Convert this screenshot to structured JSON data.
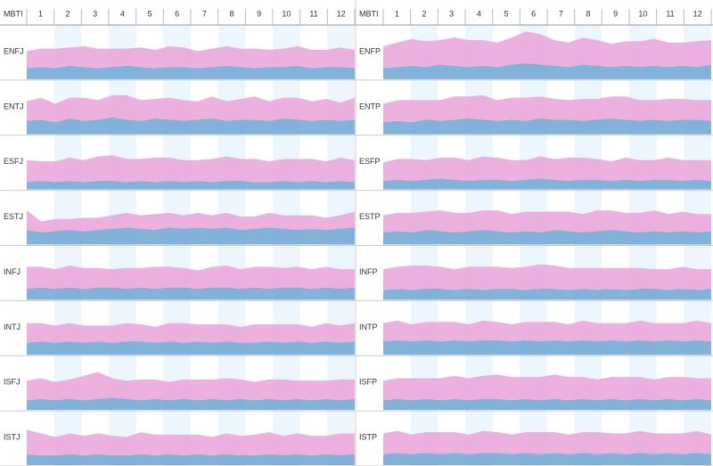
{
  "chart_data": {
    "type": "area",
    "header": "MBTI",
    "months": [
      "1",
      "2",
      "3",
      "4",
      "5",
      "6",
      "7",
      "8",
      "9",
      "10",
      "11",
      "12"
    ],
    "colors": [
      "#6fa6d3",
      "#eaa3d9"
    ],
    "stacked": true,
    "ylim": [
      0,
      40
    ],
    "panels": [
      {
        "name": "ENFJ",
        "series": [
          {
            "color": "#6fa6d3",
            "values": [
              9,
              10,
              9,
              11,
              10,
              9,
              10,
              11,
              10,
              9,
              10,
              10,
              9,
              10,
              11,
              10,
              9,
              10,
              10,
              11,
              9,
              10,
              10,
              9
            ]
          },
          {
            "color": "#eaa3d9",
            "values": [
              14,
              15,
              16,
              15,
              17,
              16,
              15,
              14,
              16,
              15,
              17,
              16,
              14,
              15,
              16,
              15,
              16,
              14,
              15,
              16,
              15,
              14,
              16,
              15
            ]
          }
        ]
      },
      {
        "name": "ENFP",
        "series": [
          {
            "color": "#6fa6d3",
            "values": [
              9,
              10,
              11,
              10,
              12,
              11,
              10,
              11,
              10,
              12,
              13,
              12,
              11,
              10,
              12,
              11,
              10,
              11,
              10,
              11,
              10,
              11,
              10,
              12
            ]
          },
          {
            "color": "#eaa3d9",
            "values": [
              18,
              20,
              22,
              21,
              20,
              23,
              22,
              21,
              20,
              22,
              26,
              25,
              21,
              20,
              22,
              21,
              19,
              20,
              21,
              22,
              20,
              19,
              21,
              20
            ]
          }
        ]
      },
      {
        "name": "ENTJ",
        "series": [
          {
            "color": "#6fa6d3",
            "values": [
              11,
              12,
              10,
              13,
              11,
              12,
              14,
              12,
              11,
              13,
              12,
              11,
              12,
              13,
              11,
              12,
              12,
              11,
              13,
              12,
              11,
              12,
              11,
              12
            ]
          },
          {
            "color": "#eaa3d9",
            "values": [
              16,
              18,
              15,
              17,
              19,
              16,
              18,
              20,
              17,
              16,
              18,
              17,
              15,
              18,
              16,
              17,
              19,
              16,
              17,
              18,
              16,
              17,
              15,
              18
            ]
          }
        ]
      },
      {
        "name": "ENTP",
        "series": [
          {
            "color": "#6fa6d3",
            "values": [
              10,
              11,
              10,
              12,
              11,
              12,
              13,
              12,
              11,
              12,
              11,
              13,
              12,
              12,
              11,
              12,
              13,
              12,
              11,
              12,
              11,
              12,
              12,
              11
            ]
          },
          {
            "color": "#eaa3d9",
            "values": [
              15,
              17,
              18,
              16,
              17,
              19,
              18,
              20,
              17,
              18,
              19,
              18,
              17,
              16,
              18,
              17,
              18,
              19,
              17,
              16,
              18,
              17,
              16,
              17
            ]
          }
        ]
      },
      {
        "name": "ESFJ",
        "series": [
          {
            "color": "#6fa6d3",
            "values": [
              6,
              7,
              6,
              7,
              6,
              7,
              7,
              6,
              7,
              6,
              7,
              6,
              7,
              6,
              7,
              7,
              6,
              6,
              7,
              6,
              7,
              6,
              7,
              6
            ]
          },
          {
            "color": "#eaa3d9",
            "values": [
              18,
              16,
              17,
              19,
              18,
              20,
              21,
              19,
              18,
              20,
              19,
              18,
              17,
              19,
              20,
              18,
              19,
              17,
              18,
              19,
              18,
              17,
              19,
              18
            ]
          }
        ]
      },
      {
        "name": "ESFP",
        "series": [
          {
            "color": "#6fa6d3",
            "values": [
              7,
              8,
              7,
              8,
              9,
              8,
              7,
              8,
              8,
              7,
              8,
              9,
              8,
              7,
              8,
              8,
              7,
              8,
              7,
              8,
              8,
              7,
              8,
              7
            ]
          },
          {
            "color": "#eaa3d9",
            "values": [
              15,
              17,
              18,
              16,
              17,
              18,
              17,
              19,
              18,
              17,
              16,
              18,
              17,
              19,
              18,
              17,
              16,
              18,
              17,
              16,
              18,
              17,
              16,
              17
            ]
          }
        ]
      },
      {
        "name": "ESTJ",
        "series": [
          {
            "color": "#6fa6d3",
            "values": [
              12,
              10,
              11,
              12,
              11,
              12,
              13,
              14,
              13,
              12,
              14,
              13,
              14,
              13,
              14,
              12,
              13,
              14,
              13,
              12,
              13,
              12,
              13,
              14
            ]
          },
          {
            "color": "#eaa3d9",
            "values": [
              16,
              9,
              10,
              9,
              11,
              10,
              11,
              12,
              11,
              13,
              12,
              11,
              12,
              11,
              12,
              11,
              10,
              12,
              11,
              12,
              11,
              10,
              11,
              13
            ]
          }
        ]
      },
      {
        "name": "ESTP",
        "series": [
          {
            "color": "#6fa6d3",
            "values": [
              10,
              11,
              10,
              12,
              11,
              10,
              11,
              12,
              11,
              10,
              11,
              10,
              12,
              11,
              10,
              11,
              12,
              11,
              10,
              11,
              10,
              11,
              10,
              11
            ]
          },
          {
            "color": "#eaa3d9",
            "values": [
              14,
              15,
              16,
              15,
              17,
              16,
              15,
              16,
              17,
              15,
              16,
              17,
              15,
              16,
              15,
              17,
              16,
              15,
              16,
              17,
              15,
              16,
              15,
              14
            ]
          }
        ]
      },
      {
        "name": "INFJ",
        "series": [
          {
            "color": "#6fa6d3",
            "values": [
              9,
              10,
              9,
              10,
              9,
              10,
              10,
              9,
              10,
              9,
              10,
              10,
              9,
              10,
              10,
              9,
              10,
              9,
              10,
              10,
              9,
              10,
              9,
              10
            ]
          },
          {
            "color": "#eaa3d9",
            "values": [
              18,
              17,
              16,
              18,
              17,
              16,
              15,
              17,
              16,
              18,
              17,
              16,
              15,
              17,
              18,
              16,
              17,
              18,
              16,
              17,
              16,
              17,
              16,
              15
            ]
          }
        ]
      },
      {
        "name": "INFP",
        "series": [
          {
            "color": "#6fa6d3",
            "values": [
              8,
              9,
              8,
              9,
              9,
              8,
              9,
              8,
              9,
              9,
              8,
              9,
              9,
              8,
              9,
              8,
              9,
              8,
              9,
              9,
              8,
              9,
              8,
              9
            ]
          },
          {
            "color": "#eaa3d9",
            "values": [
              17,
              18,
              20,
              19,
              18,
              17,
              18,
              19,
              18,
              17,
              19,
              20,
              19,
              18,
              17,
              18,
              17,
              18,
              17,
              16,
              17,
              18,
              17,
              16
            ]
          }
        ]
      },
      {
        "name": "INTJ",
        "series": [
          {
            "color": "#6fa6d3",
            "values": [
              10,
              11,
              10,
              11,
              10,
              11,
              10,
              11,
              11,
              10,
              11,
              10,
              11,
              10,
              11,
              10,
              10,
              11,
              10,
              11,
              10,
              11,
              10,
              11
            ]
          },
          {
            "color": "#eaa3d9",
            "values": [
              16,
              15,
              14,
              15,
              14,
              13,
              14,
              15,
              14,
              13,
              15,
              16,
              14,
              15,
              14,
              13,
              15,
              14,
              15,
              14,
              13,
              15,
              14,
              15
            ]
          }
        ]
      },
      {
        "name": "INTP",
        "series": [
          {
            "color": "#6fa6d3",
            "values": [
              11,
              12,
              11,
              12,
              11,
              12,
              11,
              12,
              12,
              11,
              12,
              11,
              12,
              11,
              12,
              11,
              12,
              11,
              12,
              11,
              12,
              11,
              12,
              11
            ]
          },
          {
            "color": "#eaa3d9",
            "values": [
              15,
              16,
              14,
              15,
              16,
              15,
              14,
              16,
              15,
              14,
              15,
              16,
              15,
              14,
              16,
              15,
              14,
              15,
              16,
              15,
              14,
              15,
              16,
              15
            ]
          }
        ]
      },
      {
        "name": "ISFJ",
        "series": [
          {
            "color": "#6fa6d3",
            "values": [
              8,
              9,
              8,
              9,
              8,
              9,
              10,
              9,
              8,
              9,
              8,
              9,
              8,
              9,
              8,
              9,
              8,
              9,
              8,
              9,
              8,
              9,
              8,
              9
            ]
          },
          {
            "color": "#eaa3d9",
            "values": [
              16,
              17,
              15,
              16,
              20,
              22,
              16,
              15,
              17,
              16,
              15,
              16,
              17,
              16,
              18,
              16,
              15,
              16,
              17,
              15,
              16,
              15,
              17,
              16
            ]
          }
        ]
      },
      {
        "name": "ISFP",
        "series": [
          {
            "color": "#6fa6d3",
            "values": [
              8,
              9,
              8,
              9,
              8,
              9,
              8,
              9,
              9,
              8,
              9,
              8,
              9,
              8,
              9,
              8,
              9,
              8,
              9,
              8,
              9,
              8,
              9,
              8
            ]
          },
          {
            "color": "#eaa3d9",
            "values": [
              16,
              17,
              18,
              17,
              18,
              19,
              18,
              19,
              20,
              19,
              18,
              19,
              20,
              19,
              18,
              17,
              18,
              19,
              18,
              17,
              18,
              19,
              17,
              18
            ]
          }
        ]
      },
      {
        "name": "ISTJ",
        "series": [
          {
            "color": "#6fa6d3",
            "values": [
              9,
              8,
              8,
              9,
              8,
              9,
              8,
              8,
              9,
              8,
              9,
              8,
              9,
              8,
              9,
              8,
              8,
              9,
              8,
              9,
              8,
              9,
              8,
              9
            ]
          },
          {
            "color": "#eaa3d9",
            "values": [
              20,
              18,
              15,
              17,
              16,
              17,
              16,
              15,
              18,
              17,
              16,
              17,
              16,
              15,
              17,
              16,
              17,
              18,
              16,
              17,
              16,
              15,
              18,
              17
            ]
          }
        ]
      },
      {
        "name": "ISTP",
        "series": [
          {
            "color": "#6fa6d3",
            "values": [
              9,
              10,
              9,
              10,
              9,
              10,
              9,
              10,
              10,
              9,
              10,
              9,
              10,
              9,
              10,
              9,
              10,
              9,
              10,
              9,
              10,
              9,
              10,
              9
            ]
          },
          {
            "color": "#eaa3d9",
            "values": [
              17,
              18,
              16,
              17,
              18,
              17,
              16,
              18,
              17,
              16,
              17,
              18,
              17,
              16,
              17,
              18,
              16,
              17,
              18,
              17,
              16,
              17,
              18,
              16
            ]
          }
        ]
      }
    ]
  }
}
